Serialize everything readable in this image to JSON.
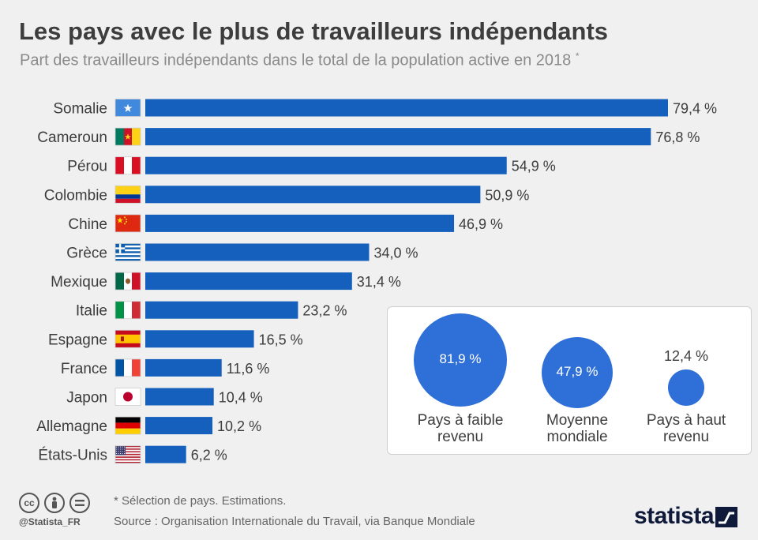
{
  "header": {
    "title": "Les pays avec le plus de travailleurs indépendants",
    "subtitle": "Part des travailleurs indépendants dans le total de la population active en 2018",
    "subtitle_mark": "*"
  },
  "chart_data": {
    "type": "bar",
    "orientation": "horizontal",
    "title": "Les pays avec le plus de travailleurs indépendants",
    "categories": [
      "Somalie",
      "Cameroun",
      "Pérou",
      "Colombie",
      "Chine",
      "Grèce",
      "Mexique",
      "Italie",
      "Espagne",
      "France",
      "Japon",
      "Allemagne",
      "États-Unis"
    ],
    "values": [
      79.4,
      76.8,
      54.9,
      50.9,
      46.9,
      34.0,
      31.4,
      23.2,
      16.5,
      11.6,
      10.4,
      10.2,
      6.2
    ],
    "value_labels": [
      "79,4 %",
      "76,8 %",
      "54,9 %",
      "50,9 %",
      "46,9 %",
      "34,0 %",
      "31,4 %",
      "23,2 %",
      "16,5 %",
      "11,6 %",
      "10,4 %",
      "10,2 %",
      "6,2 %"
    ],
    "flag_icons": [
      "somalia-flag-icon",
      "cameroon-flag-icon",
      "peru-flag-icon",
      "colombia-flag-icon",
      "china-flag-icon",
      "greece-flag-icon",
      "mexico-flag-icon",
      "italy-flag-icon",
      "spain-flag-icon",
      "france-flag-icon",
      "japan-flag-icon",
      "germany-flag-icon",
      "usa-flag-icon"
    ],
    "bar_color": "#1560bd",
    "xlim": [
      0,
      79.4
    ],
    "grid": false,
    "xlabel": "",
    "ylabel": ""
  },
  "comparison": {
    "bubble_color": "#2f6fd8",
    "items": [
      {
        "label": "Pays à faible revenu",
        "line1": "Pays à faible",
        "line2": "revenu",
        "value": 81.9,
        "value_label": "81,9 %"
      },
      {
        "label": "Moyenne mondiale",
        "line1": "Moyenne",
        "line2": "mondiale",
        "value": 47.9,
        "value_label": "47,9 %"
      },
      {
        "label": "Pays à haut revenu",
        "line1": "Pays à haut",
        "line2": "revenu",
        "value": 12.4,
        "value_label": "12,4 %"
      }
    ]
  },
  "footer": {
    "footnote": "* Sélection de pays. Estimations.",
    "source": "Source : Organisation Internationale du Travail, via Banque Mondiale",
    "handle": "@Statista_FR",
    "brand": "statista",
    "cc_icons": [
      "cc-icon",
      "by-icon",
      "nd-icon"
    ]
  }
}
